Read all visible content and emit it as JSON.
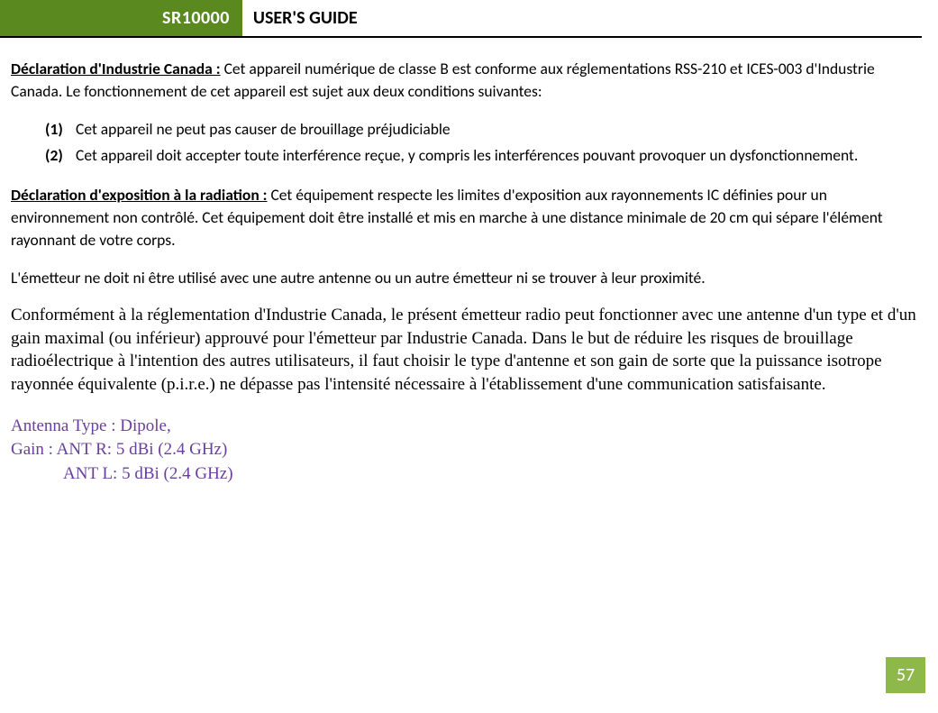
{
  "header": {
    "model": "SR10000",
    "title": "USER'S GUIDE"
  },
  "colors": {
    "header_green": "#5a8a1f",
    "page_badge": "#8fb84a",
    "purple": "#6a3fa0",
    "text": "#000000",
    "background": "#ffffff"
  },
  "declaration_ic": {
    "label": "Déclaration d'Industrie Canada :",
    "text": " Cet appareil numérique de classe B est conforme aux réglementations RSS-210 et ICES-003 d'Industrie Canada. Le fonctionnement de cet appareil est sujet aux deux conditions suivantes:"
  },
  "conditions": [
    {
      "num": "(1)",
      "text": "Cet appareil ne peut pas causer de brouillage préjudiciable"
    },
    {
      "num": "(2)",
      "text": "Cet appareil doit accepter toute interférence reçue, y compris les interférences pouvant provoquer un dysfonctionnement."
    }
  ],
  "declaration_rad": {
    "label": "Déclaration d'exposition à la radiation :",
    "text": " Cet équipement respecte les limites d'exposition aux rayonnements IC définies pour un environnement non contrôlé. Cet équipement doit être installé et mis en marche à une distance minimale de 20 cm qui sépare l'élément rayonnant de votre corps."
  },
  "emitter_note": "L'émetteur ne doit ni être utilisé avec une autre antenne ou un autre émetteur ni se trouver à leur proximité.",
  "conformity": {
    "part1": "Conformément à la réglementation d'Industrie Canada, le présent émetteur radio peut fonctionner avec une antenne d'un type et d'un gain maximal (ou inférieur) approuvé pour l'émetteur par Industrie Canada. Dans le but de réduire les risques de brouillage radioélectrique ",
    "a_hat": "à",
    "part2": "  l'intention des autres utilisateurs, il faut choisir le type d'antenne et son gain de sorte que la puissance isotrope rayonnée équivalente (p.i.r.e.) ne dépasse pas l'intensité nécessaire à l'établissement d'une communication satisfaisante."
  },
  "antenna": {
    "type_line": "Antenna Type : Dipole,",
    "gain_r": "Gain : ANT R: 5 dBi (2.4 GHz)",
    "gain_l": "ANT L: 5 dBi (2.4 GHz)"
  },
  "page_number": "57"
}
